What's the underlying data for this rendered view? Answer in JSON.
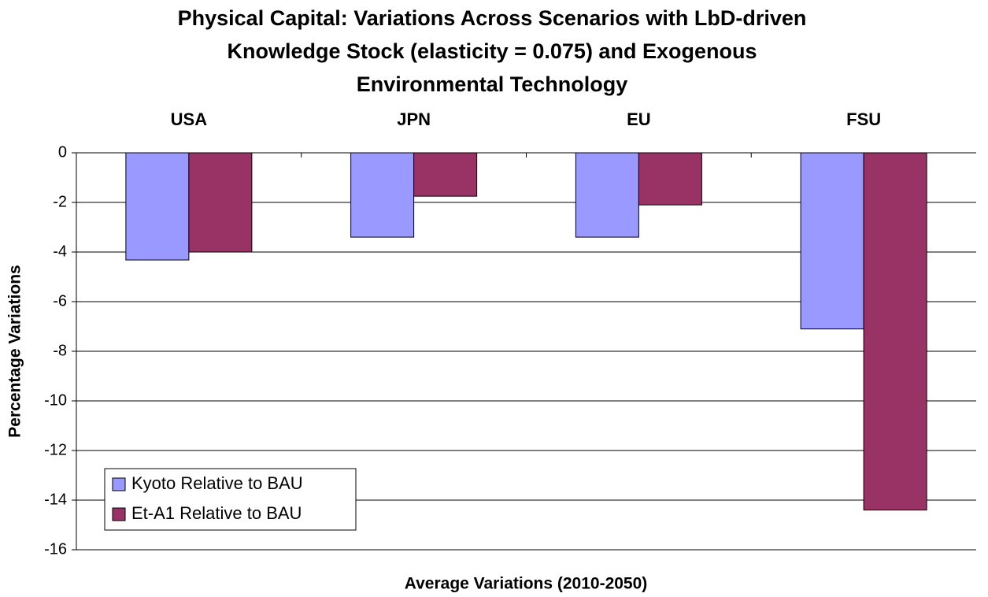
{
  "chart_data": {
    "type": "bar",
    "title": [
      "Physical Capital: Variations Across Scenarios with LbD-driven",
      "Knowledge Stock (elasticity = 0.075) and Exogenous",
      "Environmental Technology"
    ],
    "x_label": "Average Variations (2010-2050)",
    "y_label": "Percentage Variations",
    "categories": [
      "USA",
      "JPN",
      "EU",
      "FSU"
    ],
    "series": [
      {
        "name": "Kyoto Relative to BAU",
        "color": "#9999ff",
        "values": [
          -4.32,
          -3.4,
          -3.4,
          -7.1
        ]
      },
      {
        "name": "Et-A1 Relative to BAU",
        "color": "#993366",
        "values": [
          -4.0,
          -1.75,
          -2.1,
          -14.4
        ]
      }
    ],
    "ylim": [
      -16,
      0
    ],
    "yticks": [
      0,
      -2,
      -4,
      -6,
      -8,
      -10,
      -12,
      -14,
      -16
    ],
    "grid": true,
    "legend": "lower-left"
  }
}
